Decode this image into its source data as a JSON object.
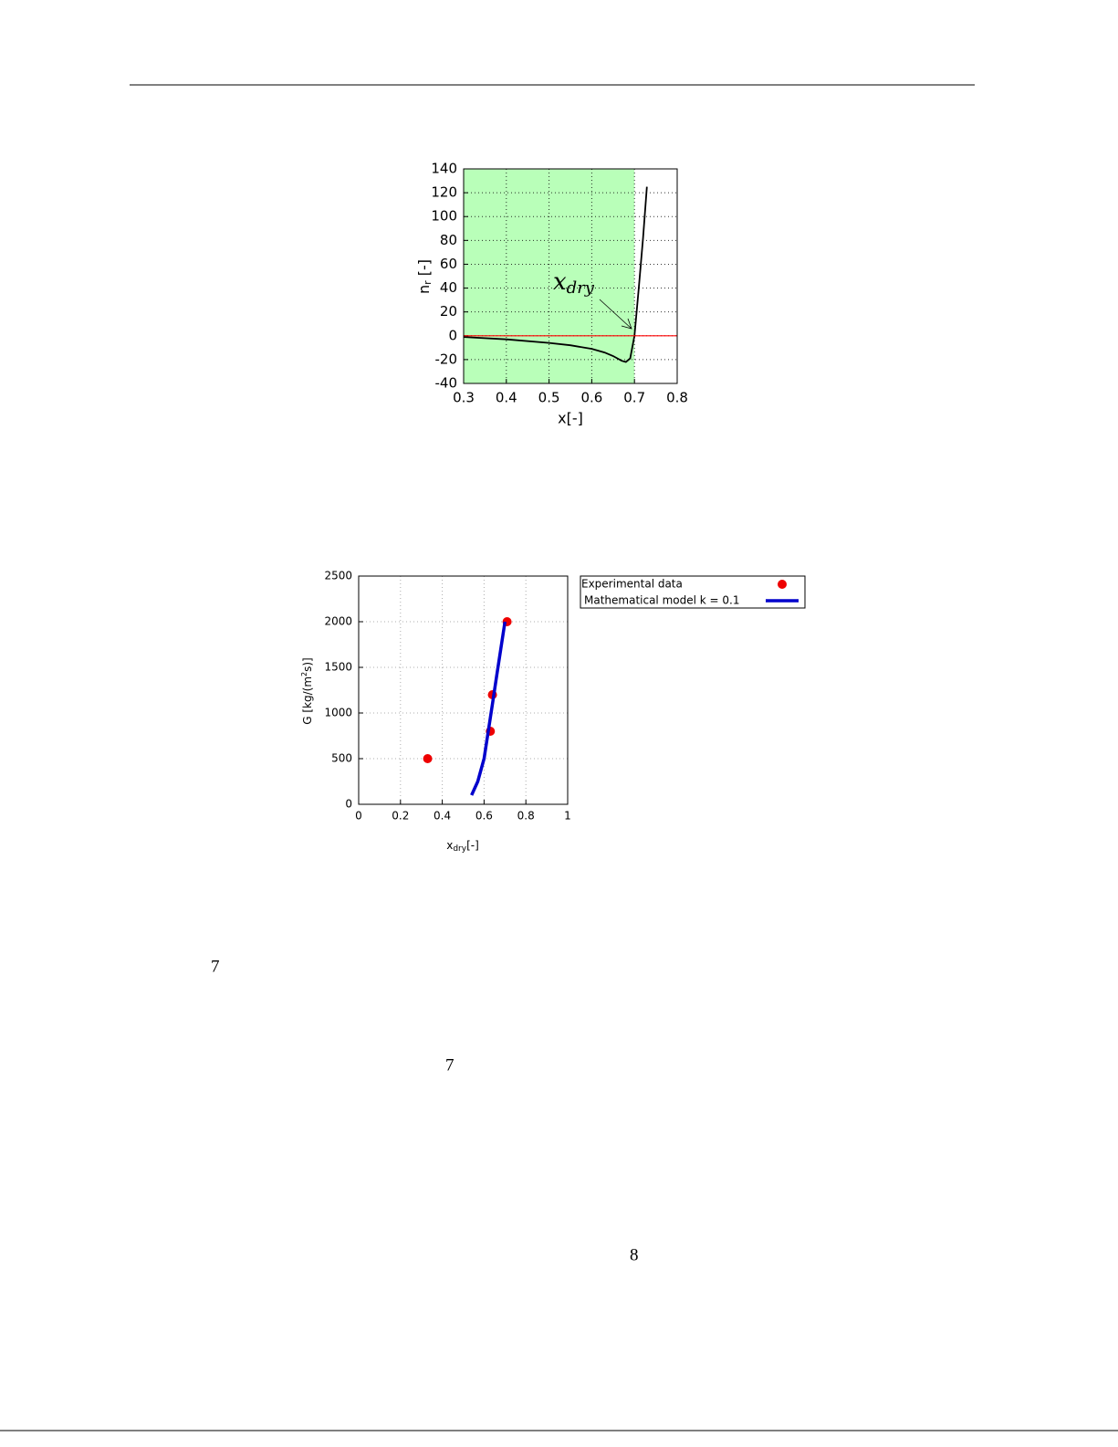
{
  "chart_data": [
    {
      "type": "line",
      "xlabel": "x[-]",
      "ylabel": {
        "base": "n",
        "sub": "r",
        "rest": " [-]"
      },
      "annotation": {
        "base": "x",
        "sub": "dry"
      },
      "xlim": [
        0.3,
        0.8
      ],
      "xticks": [
        0.3,
        0.4,
        0.5,
        0.6,
        0.7,
        0.8
      ],
      "ylim": [
        -40,
        140
      ],
      "yticks": [
        -40,
        -20,
        0,
        20,
        40,
        60,
        80,
        100,
        120,
        140
      ],
      "grid": true,
      "shade": {
        "xlim": [
          0.3,
          0.7
        ],
        "color": "#b9ffb9"
      },
      "series": [
        {
          "type": "line",
          "color": "#000000",
          "x": [
            0.3,
            0.4,
            0.5,
            0.55,
            0.6,
            0.63,
            0.65,
            0.67,
            0.68,
            0.69,
            0.7,
            0.71,
            0.72,
            0.729
          ],
          "values": [
            -1,
            -3,
            -6,
            -8,
            -11,
            -14,
            -17,
            -21,
            -22,
            -19,
            0,
            40,
            82,
            125
          ]
        },
        {
          "type": "line",
          "color": "#ff0000",
          "x": [
            0.3,
            0.8
          ],
          "values": [
            0,
            0
          ]
        }
      ]
    },
    {
      "type": "scatter",
      "xlabel": {
        "base": "x",
        "sub": "dry",
        "rest": "[-]"
      },
      "ylabel": {
        "before": "G [kg/(m",
        "sup": "2",
        "after": "s)]"
      },
      "xlim": [
        0,
        1
      ],
      "xticks": [
        0,
        0.2,
        0.4,
        0.6,
        0.8,
        1
      ],
      "ylim": [
        0,
        2500
      ],
      "yticks": [
        0,
        500,
        1000,
        1500,
        2000,
        2500
      ],
      "grid": true,
      "legend": "outside-right",
      "series": [
        {
          "type": "scatter",
          "name": "Experimental data",
          "color": "#ee0000",
          "x": [
            0.33,
            0.63,
            0.64,
            0.71
          ],
          "values": [
            500,
            800,
            1200,
            2000
          ]
        },
        {
          "type": "line",
          "name": "Mathematical model k = 0.1",
          "color": "#0000cc",
          "x": [
            0.54,
            0.57,
            0.6,
            0.62,
            0.64,
            0.66,
            0.68,
            0.7
          ],
          "values": [
            100,
            250,
            500,
            800,
            1100,
            1400,
            1700,
            2000
          ]
        }
      ]
    }
  ],
  "text_fragments": [
    "7",
    "7",
    "8"
  ]
}
